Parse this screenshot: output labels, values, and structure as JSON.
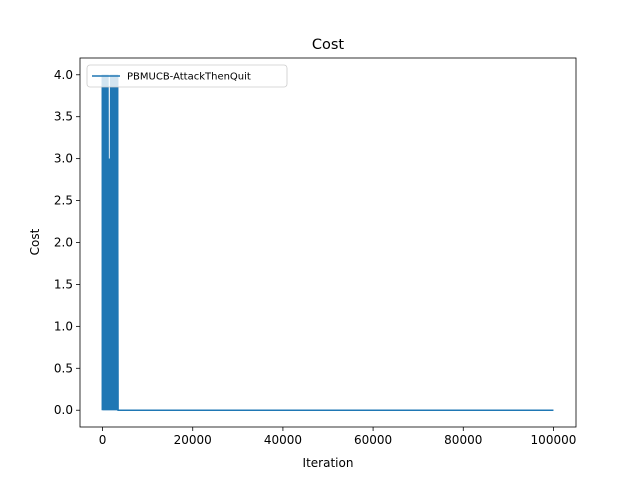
{
  "chart_data": {
    "type": "line",
    "title": "Cost",
    "xlabel": "Iteration",
    "ylabel": "Cost",
    "xlim": [
      -5000,
      105000
    ],
    "ylim": [
      -0.2,
      4.2
    ],
    "x_ticks": [
      0,
      20000,
      40000,
      60000,
      80000,
      100000
    ],
    "x_tick_labels": [
      "0",
      "20000",
      "40000",
      "60000",
      "80000",
      "100000"
    ],
    "y_ticks": [
      0.0,
      0.5,
      1.0,
      1.5,
      2.0,
      2.5,
      3.0,
      3.5,
      4.0
    ],
    "y_tick_labels": [
      "0.0",
      "0.5",
      "1.0",
      "1.5",
      "2.0",
      "2.5",
      "3.0",
      "3.5",
      "4.0"
    ],
    "grid": false,
    "legend_position": "upper left",
    "series": [
      {
        "name": "PBMUCB-AttackThenQuit",
        "color": "#1f77b4",
        "description_of_values": "cost oscillates between 0 and 4 for the first ~3300 iterations, then stays at 0 through 100000",
        "x": [
          0,
          150,
          300,
          450,
          600,
          750,
          900,
          1050,
          1200,
          1350,
          1500,
          1650,
          1800,
          1950,
          2100,
          2250,
          2400,
          2550,
          2700,
          2850,
          3000,
          3150,
          3300,
          3450,
          100000
        ],
        "y": [
          4,
          0,
          4,
          0,
          4,
          0,
          4,
          0,
          4,
          0,
          3,
          0,
          4,
          0,
          4,
          0,
          4,
          0,
          4,
          0,
          4,
          0,
          4,
          0,
          0
        ]
      }
    ]
  }
}
